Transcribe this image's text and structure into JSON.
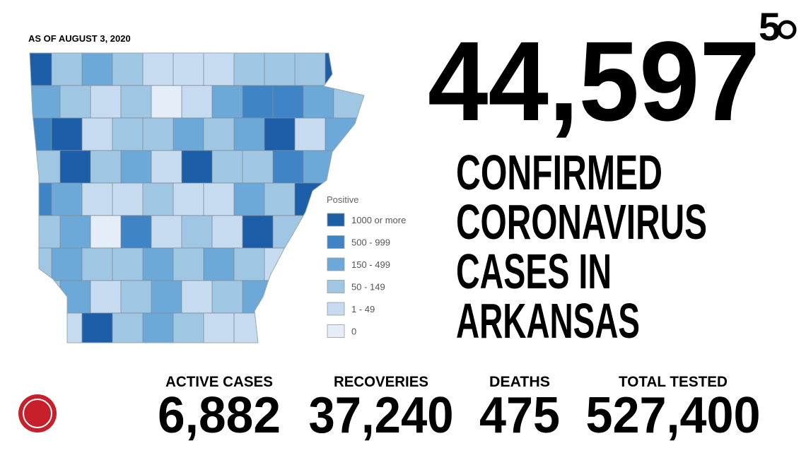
{
  "header": {
    "date": "AS OF AUGUST 3, 2020",
    "brand": "5"
  },
  "headline": {
    "number": "44,597",
    "lines": [
      "CONFIRMED",
      "CORONAVIRUS",
      "CASES IN",
      "ARKANSAS"
    ]
  },
  "legend": {
    "title": "Positive",
    "items": [
      {
        "label": "1000 or more",
        "color": "#1d5ea8"
      },
      {
        "label": "500 - 999",
        "color": "#3f84c4"
      },
      {
        "label": "150 - 499",
        "color": "#6ca8d8"
      },
      {
        "label": "50 - 149",
        "color": "#9fc7e4"
      },
      {
        "label": "1 - 49",
        "color": "#c6daf0"
      },
      {
        "label": "0",
        "color": "#e5edf8"
      }
    ]
  },
  "stats": [
    {
      "label": "ACTIVE CASES",
      "value": "6,882"
    },
    {
      "label": "RECOVERIES",
      "value": "37,240"
    },
    {
      "label": "DEATHS",
      "value": "475"
    },
    {
      "label": "TOTAL TESTED",
      "value": "527,400"
    }
  ]
}
